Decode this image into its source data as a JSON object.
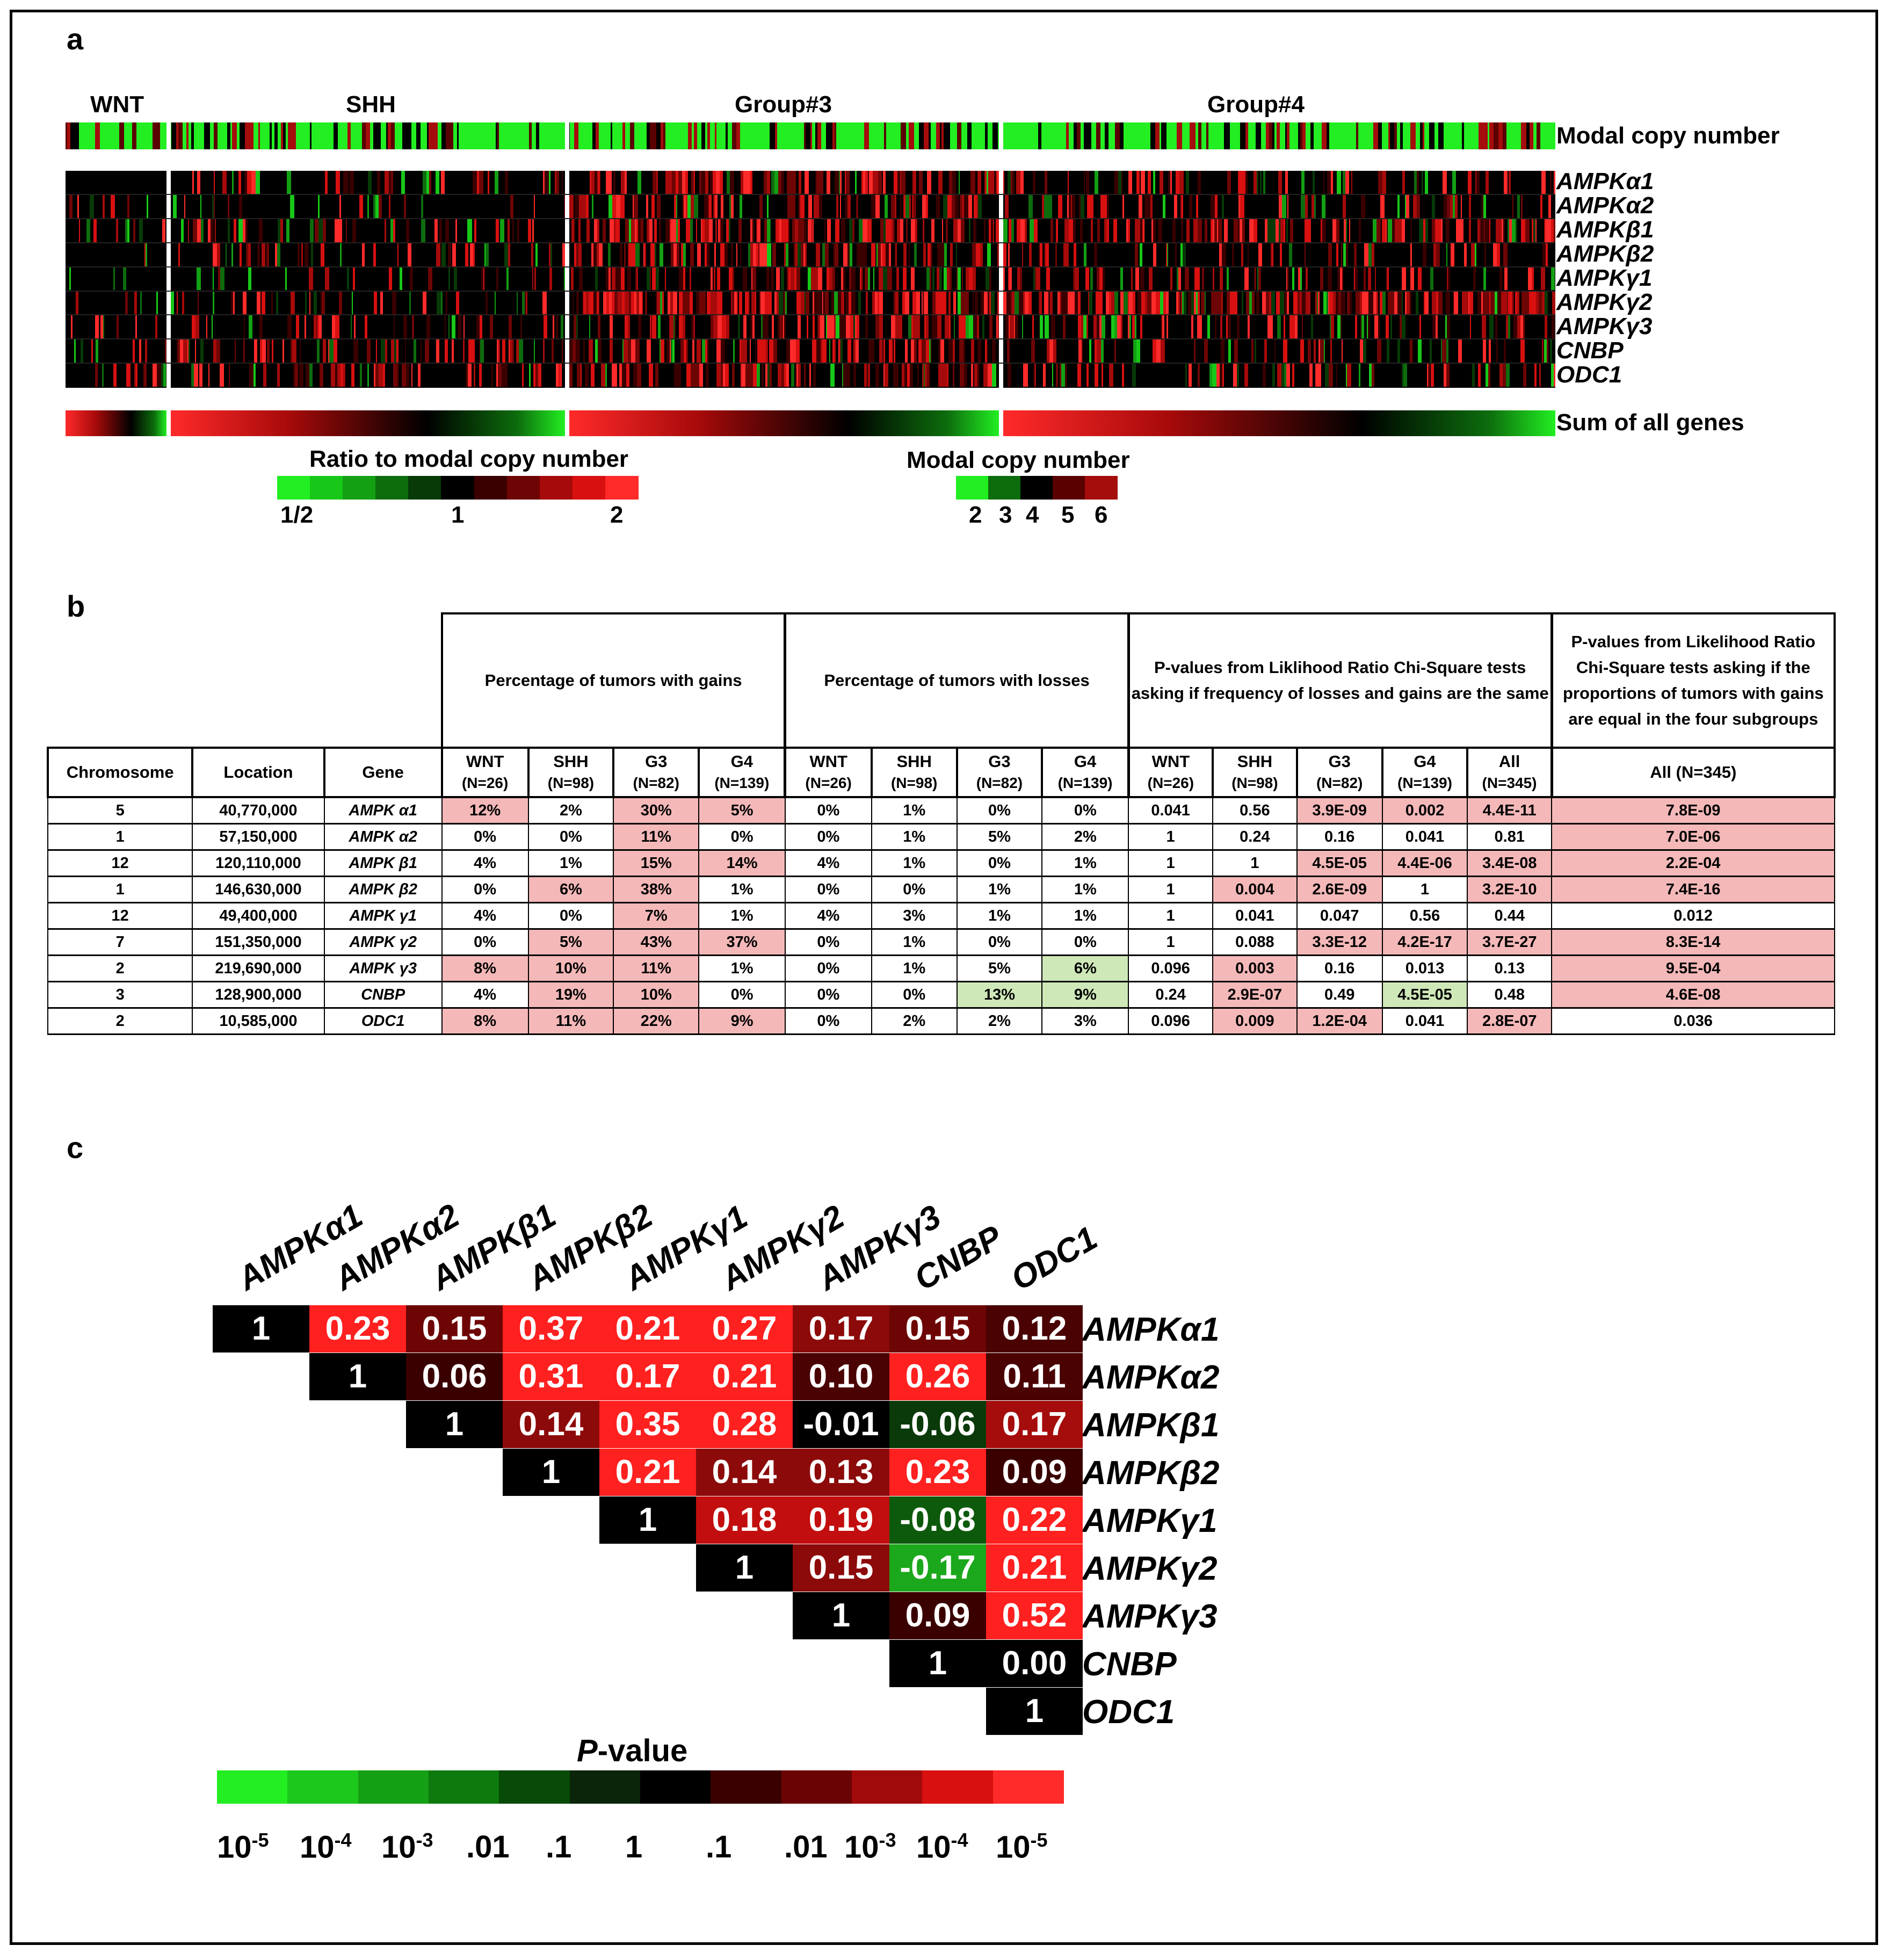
{
  "panel_a": {
    "label": "a",
    "groups": [
      "WNT",
      "SHH",
      "Group#3",
      "Group#4"
    ],
    "modal_row_label": "Modal copy number",
    "genes": [
      "AMPKα1",
      "AMPKα2",
      "AMPKβ1",
      "AMPKβ2",
      "AMPKγ1",
      "AMPKγ2",
      "AMPKγ3",
      "CNBP",
      "ODC1"
    ],
    "sum_label": "Sum of all genes",
    "ratio_legend": {
      "title": "Ratio to modal copy number",
      "ticks": [
        "1/2",
        "1",
        "2"
      ],
      "colors": [
        "#22ee22",
        "#18c818",
        "#13a013",
        "#0d6d0d",
        "#073a07",
        "#000000",
        "#3a0000",
        "#6e0505",
        "#a70a0a",
        "#d81010",
        "#ff2a2a"
      ]
    },
    "modal_legend": {
      "title": "Modal copy number",
      "ticks": [
        "2",
        "3",
        "4",
        "5",
        "6"
      ],
      "colors": [
        "#22ee22",
        "#0d6d0d",
        "#000000",
        "#5a0000",
        "#a50c0c"
      ]
    }
  },
  "panel_b": {
    "label": "b",
    "header_groups": [
      "Percentage of tumors with gains",
      "Percentage of tumors with losses",
      "P-values from Liklihood Ratio Chi-Square tests asking if frequency of losses and gains are the same",
      "P-values from Likelihood Ratio Chi-Square tests asking if the proportions of tumors with gains are equal in the four subgroups"
    ],
    "columns": {
      "chromosome": "Chromosome",
      "location": "Location",
      "gene": "Gene",
      "gains": [
        [
          "WNT",
          "(N=26)"
        ],
        [
          "SHH",
          "(N=98)"
        ],
        [
          "G3",
          "(N=82)"
        ],
        [
          "G4",
          "(N=139)"
        ]
      ],
      "losses": [
        [
          "WNT",
          "(N=26)"
        ],
        [
          "SHH",
          "(N=98)"
        ],
        [
          "G3",
          "(N=82)"
        ],
        [
          "G4",
          "(N=139)"
        ]
      ],
      "pvals": [
        [
          "WNT",
          "(N=26)"
        ],
        [
          "SHH",
          "(N=98)"
        ],
        [
          "G3",
          "(N=82)"
        ],
        [
          "G4",
          "(N=139)"
        ],
        [
          "All",
          "(N=345)"
        ]
      ],
      "all": "All (N=345)"
    },
    "rows": [
      {
        "chr": "5",
        "loc": "40,770,000",
        "gene": "AMPK α1",
        "gains": [
          "12%",
          "2%",
          "30%",
          "5%"
        ],
        "losses": [
          "0%",
          "1%",
          "0%",
          "0%"
        ],
        "pvals": [
          "0.041",
          "0.56",
          "3.9E-09",
          "0.002",
          "4.4E-11"
        ],
        "all": "7.8E-09",
        "hl_g": [
          1,
          0,
          1,
          1
        ],
        "hl_l": [
          0,
          0,
          0,
          0
        ],
        "hl_p": [
          0,
          0,
          1,
          1,
          1
        ],
        "hl_a": 1
      },
      {
        "chr": "1",
        "loc": "57,150,000",
        "gene": "AMPK α2",
        "gains": [
          "0%",
          "0%",
          "11%",
          "0%"
        ],
        "losses": [
          "0%",
          "1%",
          "5%",
          "2%"
        ],
        "pvals": [
          "1",
          "0.24",
          "0.16",
          "0.041",
          "0.81"
        ],
        "all": "7.0E-06",
        "hl_g": [
          0,
          0,
          1,
          0
        ],
        "hl_l": [
          0,
          0,
          0,
          0
        ],
        "hl_p": [
          0,
          0,
          0,
          0,
          0
        ],
        "hl_a": 1
      },
      {
        "chr": "12",
        "loc": "120,110,000",
        "gene": "AMPK β1",
        "gains": [
          "4%",
          "1%",
          "15%",
          "14%"
        ],
        "losses": [
          "4%",
          "1%",
          "0%",
          "1%"
        ],
        "pvals": [
          "1",
          "1",
          "4.5E-05",
          "4.4E-06",
          "3.4E-08"
        ],
        "all": "2.2E-04",
        "hl_g": [
          0,
          0,
          1,
          1
        ],
        "hl_l": [
          0,
          0,
          0,
          0
        ],
        "hl_p": [
          0,
          0,
          1,
          1,
          1
        ],
        "hl_a": 1
      },
      {
        "chr": "1",
        "loc": "146,630,000",
        "gene": "AMPK β2",
        "gains": [
          "0%",
          "6%",
          "38%",
          "1%"
        ],
        "losses": [
          "0%",
          "0%",
          "1%",
          "1%"
        ],
        "pvals": [
          "1",
          "0.004",
          "2.6E-09",
          "1",
          "3.2E-10"
        ],
        "all": "7.4E-16",
        "hl_g": [
          0,
          1,
          1,
          0
        ],
        "hl_l": [
          0,
          0,
          0,
          0
        ],
        "hl_p": [
          0,
          1,
          1,
          0,
          1
        ],
        "hl_a": 1
      },
      {
        "chr": "12",
        "loc": "49,400,000",
        "gene": "AMPK γ1",
        "gains": [
          "4%",
          "0%",
          "7%",
          "1%"
        ],
        "losses": [
          "4%",
          "3%",
          "1%",
          "1%"
        ],
        "pvals": [
          "1",
          "0.041",
          "0.047",
          "0.56",
          "0.44"
        ],
        "all": "0.012",
        "hl_g": [
          0,
          0,
          1,
          0
        ],
        "hl_l": [
          0,
          0,
          0,
          0
        ],
        "hl_p": [
          0,
          0,
          0,
          0,
          0
        ],
        "hl_a": 0
      },
      {
        "chr": "7",
        "loc": "151,350,000",
        "gene": "AMPK γ2",
        "gains": [
          "0%",
          "5%",
          "43%",
          "37%"
        ],
        "losses": [
          "0%",
          "1%",
          "0%",
          "0%"
        ],
        "pvals": [
          "1",
          "0.088",
          "3.3E-12",
          "4.2E-17",
          "3.7E-27"
        ],
        "all": "8.3E-14",
        "hl_g": [
          0,
          1,
          1,
          1
        ],
        "hl_l": [
          0,
          0,
          0,
          0
        ],
        "hl_p": [
          0,
          0,
          1,
          1,
          1
        ],
        "hl_a": 1
      },
      {
        "chr": "2",
        "loc": "219,690,000",
        "gene": "AMPK γ3",
        "gains": [
          "8%",
          "10%",
          "11%",
          "1%"
        ],
        "losses": [
          "0%",
          "1%",
          "5%",
          "6%"
        ],
        "pvals": [
          "0.096",
          "0.003",
          "0.16",
          "0.013",
          "0.13"
        ],
        "all": "9.5E-04",
        "hl_g": [
          1,
          1,
          1,
          0
        ],
        "hl_l": [
          0,
          0,
          0,
          2
        ],
        "hl_p": [
          0,
          1,
          0,
          0,
          0
        ],
        "hl_a": 1
      },
      {
        "chr": "3",
        "loc": "128,900,000",
        "gene": "CNBP",
        "gains": [
          "4%",
          "19%",
          "10%",
          "0%"
        ],
        "losses": [
          "0%",
          "0%",
          "13%",
          "9%"
        ],
        "pvals": [
          "0.24",
          "2.9E-07",
          "0.49",
          "4.5E-05",
          "0.48"
        ],
        "all": "4.6E-08",
        "hl_g": [
          0,
          1,
          1,
          0
        ],
        "hl_l": [
          0,
          0,
          2,
          2
        ],
        "hl_p": [
          0,
          1,
          0,
          2,
          0
        ],
        "hl_a": 1
      },
      {
        "chr": "2",
        "loc": "10,585,000",
        "gene": "ODC1",
        "gains": [
          "8%",
          "11%",
          "22%",
          "9%"
        ],
        "losses": [
          "0%",
          "2%",
          "2%",
          "3%"
        ],
        "pvals": [
          "0.096",
          "0.009",
          "1.2E-04",
          "0.041",
          "2.8E-07"
        ],
        "all": "0.036",
        "hl_g": [
          1,
          1,
          1,
          1
        ],
        "hl_l": [
          0,
          0,
          0,
          0
        ],
        "hl_p": [
          0,
          1,
          1,
          0,
          1
        ],
        "hl_a": 0
      }
    ]
  },
  "panel_c": {
    "label": "c",
    "genes": [
      "AMPKα1",
      "AMPKα2",
      "AMPKβ1",
      "AMPKβ2",
      "AMPKγ1",
      "AMPKγ2",
      "AMPKγ3",
      "CNBP",
      "ODC1"
    ],
    "matrix": [
      [
        "1",
        "0.23",
        "0.15",
        "0.37",
        "0.21",
        "0.27",
        "0.17",
        "0.15",
        "0.12"
      ],
      [
        "1",
        "0.06",
        "0.31",
        "0.17",
        "0.21",
        "0.10",
        "0.26",
        "0.11"
      ],
      [
        "1",
        "0.14",
        "0.35",
        "0.28",
        "-0.01",
        "-0.06",
        "0.17"
      ],
      [
        "1",
        "0.21",
        "0.14",
        "0.13",
        "0.23",
        "0.09"
      ],
      [
        "1",
        "0.18",
        "0.19",
        "-0.08",
        "0.22"
      ],
      [
        "1",
        "0.15",
        "-0.17",
        "0.21"
      ],
      [
        "1",
        "0.09",
        "0.52"
      ],
      [
        "1",
        "0.00"
      ],
      [
        "1"
      ]
    ],
    "colors": [
      [
        "#000000",
        "#ff2020",
        "#6e0505",
        "#ff2020",
        "#ff2020",
        "#ff2020",
        "#8c0a0a",
        "#6e0505",
        "#4a0202"
      ],
      [
        "#000000",
        "#3a0000",
        "#ff2020",
        "#ff2020",
        "#ff2020",
        "#4a0202",
        "#ff2020",
        "#4a0202"
      ],
      [
        "#000000",
        "#8c0a0a",
        "#ff2020",
        "#ff2020",
        "#000000",
        "#0a3a0a",
        "#a50c0c"
      ],
      [
        "#000000",
        "#ff2020",
        "#8c0a0a",
        "#8c0a0a",
        "#ff2020",
        "#3a0000"
      ],
      [
        "#000000",
        "#c20e0e",
        "#c20e0e",
        "#0d5a0d",
        "#ff2020"
      ],
      [
        "#000000",
        "#8c0a0a",
        "#1ca81c",
        "#ff2020"
      ],
      [
        "#000000",
        "#3a0000",
        "#ff2020"
      ],
      [
        "#000000",
        "#000000"
      ],
      [
        "#000000"
      ]
    ],
    "pvalue_legend": {
      "title": "P-value",
      "colors": [
        "#22ee22",
        "#1cc81c",
        "#14a014",
        "#0e7a0e",
        "#084a08",
        "#0a250a",
        "#000000",
        "#3a0000",
        "#6a0404",
        "#a00a0a",
        "#d81010",
        "#ff2a2a"
      ],
      "ticks": [
        "10-5",
        "10-4",
        "10-3",
        ".01",
        ".1",
        "1",
        ".1",
        ".01",
        "10-3",
        "10-4",
        "10-5"
      ]
    }
  }
}
